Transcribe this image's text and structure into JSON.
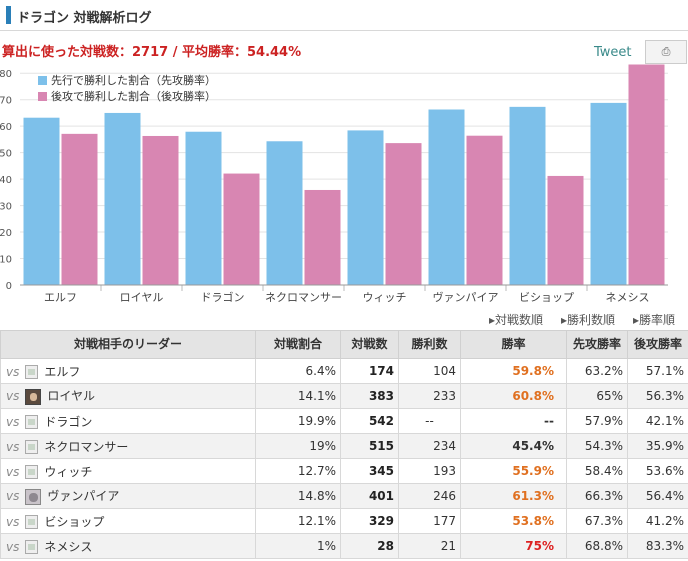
{
  "header": {
    "title": "ドラゴン 対戦解析ログ"
  },
  "summary": {
    "text": "算出に使った対戦数：2717 / 平均勝率：54.44%"
  },
  "tweet_label": "Tweet",
  "print_icon": "print-icon",
  "colors": {
    "first": "#7dc0ea",
    "second": "#d886b2",
    "grid": "#e3e3e3",
    "accent": "#2a7fb8"
  },
  "chart_data": {
    "type": "bar",
    "categories": [
      "エルフ",
      "ロイヤル",
      "ドラゴン",
      "ネクロマンサー",
      "ウィッチ",
      "ヴァンパイア",
      "ビショップ",
      "ネメシス"
    ],
    "series": [
      {
        "name": "先行で勝利した割合（先攻勝率）",
        "values": [
          63.2,
          65,
          57.9,
          54.3,
          58.4,
          66.3,
          67.3,
          68.8
        ]
      },
      {
        "name": "後攻で勝利した割合（後攻勝率）",
        "values": [
          57.1,
          56.3,
          42.1,
          35.9,
          53.6,
          56.4,
          41.2,
          83.3
        ]
      }
    ],
    "yticks": [
      "0",
      "10",
      "20",
      "30",
      "40",
      "50",
      "60",
      "70",
      "80"
    ],
    "ylim": [
      0,
      85
    ],
    "grid": true,
    "legend": "top-left"
  },
  "sort_links": [
    "▸対戦数順",
    "▸勝利数順",
    "▸勝率順"
  ],
  "table": {
    "headers": [
      "対戦相手のリーダー",
      "対戦割合",
      "対戦数",
      "勝利数",
      "勝率",
      "先攻勝率",
      "後攻勝率"
    ],
    "vs_label": "vs",
    "rows": [
      {
        "leader": "エルフ",
        "share": "6.4%",
        "games": "174",
        "wins": "104",
        "winrate": "59.8%",
        "first": "63.2%",
        "second": "57.1%",
        "avatar": "placeholder",
        "level": "high"
      },
      {
        "leader": "ロイヤル",
        "share": "14.1%",
        "games": "383",
        "wins": "233",
        "winrate": "60.8%",
        "first": "65%",
        "second": "56.3%",
        "avatar": "photo",
        "level": "high"
      },
      {
        "leader": "ドラゴン",
        "share": "19.9%",
        "games": "542",
        "wins": "--",
        "winrate": "--",
        "first": "57.9%",
        "second": "42.1%",
        "avatar": "placeholder",
        "level": "none"
      },
      {
        "leader": "ネクロマンサー",
        "share": "19%",
        "games": "515",
        "wins": "234",
        "winrate": "45.4%",
        "first": "54.3%",
        "second": "35.9%",
        "avatar": "placeholder",
        "level": "low"
      },
      {
        "leader": "ウィッチ",
        "share": "12.7%",
        "games": "345",
        "wins": "193",
        "winrate": "55.9%",
        "first": "58.4%",
        "second": "53.6%",
        "avatar": "placeholder",
        "level": "high"
      },
      {
        "leader": "ヴァンパイア",
        "share": "14.8%",
        "games": "401",
        "wins": "246",
        "winrate": "61.3%",
        "first": "66.3%",
        "second": "56.4%",
        "avatar": "photo2",
        "level": "high"
      },
      {
        "leader": "ビショップ",
        "share": "12.1%",
        "games": "329",
        "wins": "177",
        "winrate": "53.8%",
        "first": "67.3%",
        "second": "41.2%",
        "avatar": "placeholder",
        "level": "high"
      },
      {
        "leader": "ネメシス",
        "share": "1%",
        "games": "28",
        "wins": "21",
        "winrate": "75%",
        "first": "68.8%",
        "second": "83.3%",
        "avatar": "placeholder",
        "level": "top"
      }
    ]
  }
}
